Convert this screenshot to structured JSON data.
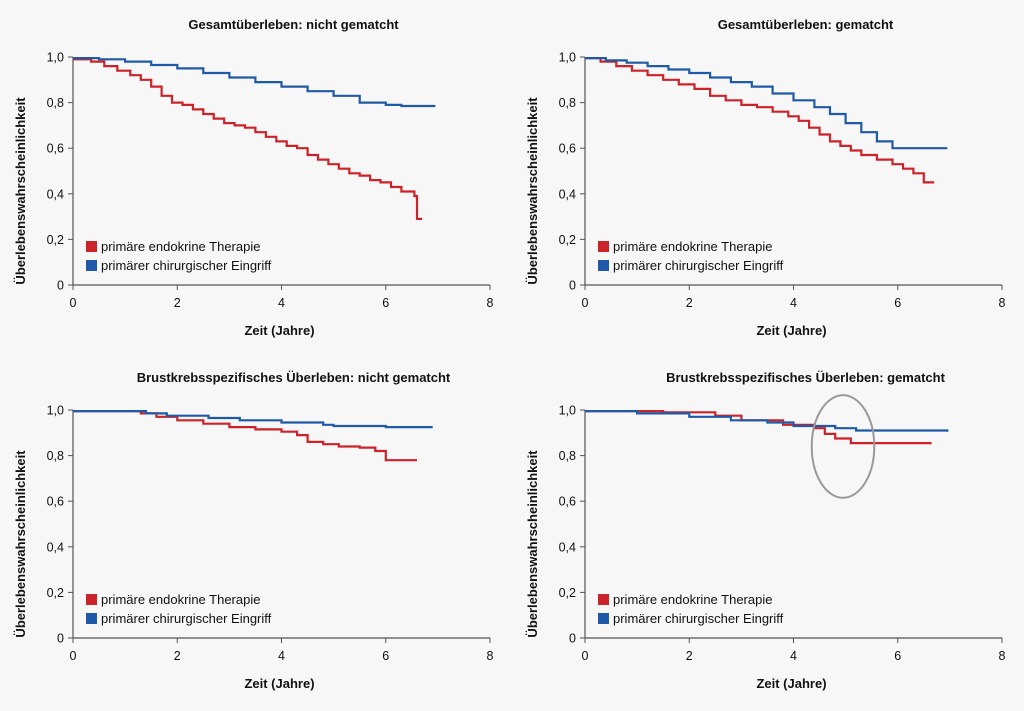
{
  "colors": {
    "endocrine": "#cc2229",
    "surgery": "#1f5aa6",
    "axis": "#555555",
    "annotation_circle": "#999999"
  },
  "chart_data": [
    {
      "type": "line",
      "title": "Gesamtüberleben: nicht gematcht",
      "xlabel": "Zeit (Jahre)",
      "ylabel": "Überlebenswahrscheinlichkeit",
      "xlim": [
        0,
        8
      ],
      "ylim": [
        0,
        1
      ],
      "xticks": [
        "0",
        "2",
        "4",
        "6",
        "8"
      ],
      "yticks": [
        "0",
        "0,2",
        "0,4",
        "0,6",
        "0,8",
        "1,0"
      ],
      "legend": {
        "position": "bottom-left"
      },
      "series": [
        {
          "name": "primäre endokrine Therapie",
          "color_key": "endocrine",
          "step": true,
          "x": [
            0,
            0.35,
            0.6,
            0.85,
            1.1,
            1.3,
            1.5,
            1.7,
            1.9,
            2.1,
            2.3,
            2.5,
            2.7,
            2.9,
            3.1,
            3.3,
            3.5,
            3.7,
            3.9,
            4.1,
            4.3,
            4.5,
            4.7,
            4.9,
            5.1,
            5.3,
            5.5,
            5.7,
            5.9,
            6.1,
            6.3,
            6.55,
            6.6,
            6.7
          ],
          "y": [
            0.99,
            0.98,
            0.96,
            0.94,
            0.92,
            0.9,
            0.87,
            0.83,
            0.8,
            0.79,
            0.77,
            0.75,
            0.73,
            0.71,
            0.7,
            0.69,
            0.67,
            0.65,
            0.63,
            0.61,
            0.6,
            0.57,
            0.55,
            0.53,
            0.51,
            0.49,
            0.48,
            0.46,
            0.45,
            0.43,
            0.41,
            0.39,
            0.29,
            0.29
          ]
        },
        {
          "name": "primärer chirurgischer Eingriff",
          "color_key": "surgery",
          "step": true,
          "x": [
            0,
            0.5,
            1.0,
            1.5,
            2.0,
            2.5,
            3.0,
            3.5,
            4.0,
            4.5,
            5.0,
            5.5,
            6.0,
            6.3,
            6.95
          ],
          "y": [
            0.995,
            0.99,
            0.98,
            0.965,
            0.95,
            0.93,
            0.91,
            0.89,
            0.87,
            0.85,
            0.83,
            0.8,
            0.79,
            0.785,
            0.785
          ]
        }
      ]
    },
    {
      "type": "line",
      "title": "Gesamtüberleben: gematcht",
      "xlabel": "Zeit (Jahre)",
      "ylabel": "Überlebenswahrscheinlichkeit",
      "xlim": [
        0,
        8
      ],
      "ylim": [
        0,
        1
      ],
      "xticks": [
        "0",
        "2",
        "4",
        "6",
        "8"
      ],
      "yticks": [
        "0",
        "0,2",
        "0,4",
        "0,6",
        "0,8",
        "1,0"
      ],
      "legend": {
        "position": "bottom-left"
      },
      "series": [
        {
          "name": "primäre endokrine Therapie",
          "color_key": "endocrine",
          "step": true,
          "x": [
            0,
            0.3,
            0.6,
            0.9,
            1.2,
            1.5,
            1.8,
            2.1,
            2.4,
            2.7,
            3.0,
            3.3,
            3.6,
            3.9,
            4.1,
            4.3,
            4.5,
            4.7,
            4.9,
            5.1,
            5.3,
            5.6,
            5.9,
            6.1,
            6.3,
            6.5,
            6.7
          ],
          "y": [
            0.995,
            0.98,
            0.96,
            0.94,
            0.92,
            0.9,
            0.88,
            0.86,
            0.83,
            0.81,
            0.79,
            0.78,
            0.76,
            0.74,
            0.72,
            0.69,
            0.66,
            0.63,
            0.61,
            0.59,
            0.57,
            0.55,
            0.53,
            0.51,
            0.49,
            0.45,
            0.45
          ]
        },
        {
          "name": "primärer chirurgischer Eingriff",
          "color_key": "surgery",
          "step": true,
          "x": [
            0,
            0.4,
            0.8,
            1.2,
            1.6,
            2.0,
            2.4,
            2.8,
            3.2,
            3.6,
            4.0,
            4.4,
            4.7,
            5.0,
            5.3,
            5.6,
            5.9,
            6.2,
            6.95
          ],
          "y": [
            0.995,
            0.985,
            0.975,
            0.96,
            0.945,
            0.93,
            0.91,
            0.89,
            0.87,
            0.84,
            0.81,
            0.78,
            0.75,
            0.71,
            0.67,
            0.63,
            0.6,
            0.6,
            0.6
          ]
        }
      ]
    },
    {
      "type": "line",
      "title": "Brustkrebsspezifisches Überleben: nicht gematcht",
      "xlabel": "Zeit (Jahre)",
      "ylabel": "Überlebenswahrscheinlichkeit",
      "xlim": [
        0,
        8
      ],
      "ylim": [
        0,
        1
      ],
      "xticks": [
        "0",
        "2",
        "4",
        "6",
        "8"
      ],
      "yticks": [
        "0",
        "0,2",
        "0,4",
        "0,6",
        "0,8",
        "1,0"
      ],
      "legend": {
        "position": "bottom-left"
      },
      "series": [
        {
          "name": "primäre endokrine Therapie",
          "color_key": "endocrine",
          "step": true,
          "x": [
            0,
            1.3,
            1.6,
            2.0,
            2.5,
            3.0,
            3.5,
            4.0,
            4.3,
            4.5,
            4.8,
            5.1,
            5.5,
            5.8,
            6.0,
            6.6
          ],
          "y": [
            0.995,
            0.985,
            0.97,
            0.955,
            0.94,
            0.925,
            0.915,
            0.905,
            0.89,
            0.86,
            0.85,
            0.84,
            0.835,
            0.82,
            0.78,
            0.78
          ]
        },
        {
          "name": "primärer chirurgischer Eingriff",
          "color_key": "surgery",
          "step": true,
          "x": [
            0,
            1.4,
            1.8,
            2.6,
            3.2,
            4.0,
            4.8,
            5.0,
            6.0,
            6.9
          ],
          "y": [
            0.995,
            0.985,
            0.975,
            0.965,
            0.955,
            0.945,
            0.935,
            0.93,
            0.925,
            0.925
          ]
        }
      ]
    },
    {
      "type": "line",
      "title": "Brustkrebsspezifisches Überleben: gematcht",
      "xlabel": "Zeit (Jahre)",
      "ylabel": "Überlebenswahrscheinlichkeit",
      "xlim": [
        0,
        8
      ],
      "ylim": [
        0,
        1
      ],
      "xticks": [
        "0",
        "2",
        "4",
        "6",
        "8"
      ],
      "yticks": [
        "0",
        "0,2",
        "0,4",
        "0,6",
        "0,8",
        "1,0"
      ],
      "legend": {
        "position": "bottom-left"
      },
      "annotation": {
        "type": "ellipse",
        "center": [
          4.95,
          0.84
        ],
        "radius_x": 0.6,
        "radius_y": 0.225
      },
      "series": [
        {
          "name": "primäre endokrine Therapie",
          "color_key": "endocrine",
          "step": true,
          "x": [
            0,
            1.5,
            2.5,
            3.0,
            3.8,
            4.4,
            4.6,
            4.8,
            5.1,
            6.0,
            6.65
          ],
          "y": [
            0.995,
            0.99,
            0.975,
            0.955,
            0.935,
            0.92,
            0.895,
            0.875,
            0.855,
            0.855,
            0.855
          ]
        },
        {
          "name": "primärer chirurgischer Eingriff",
          "color_key": "surgery",
          "step": true,
          "x": [
            0,
            1.0,
            2.0,
            2.8,
            3.5,
            4.0,
            4.8,
            5.2,
            6.95
          ],
          "y": [
            0.995,
            0.985,
            0.97,
            0.955,
            0.945,
            0.93,
            0.92,
            0.91,
            0.905
          ]
        }
      ]
    }
  ]
}
